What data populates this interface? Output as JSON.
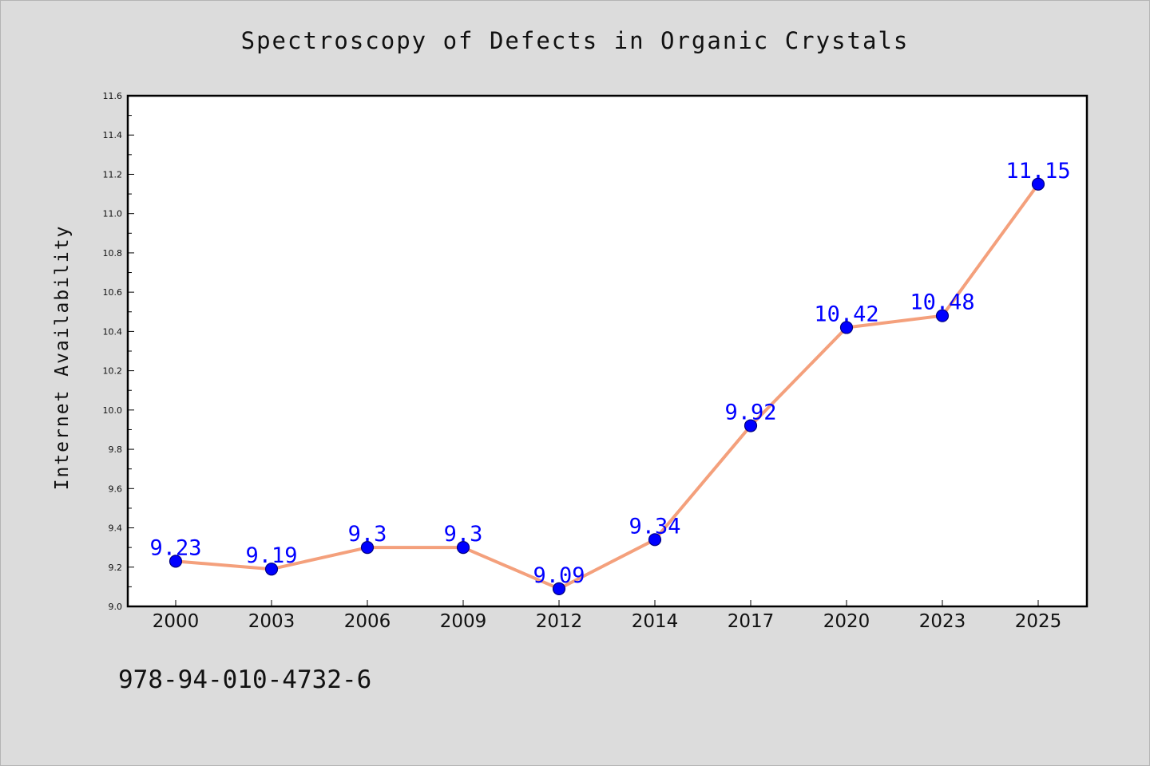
{
  "chart_data": {
    "type": "line",
    "title": "Spectroscopy of Defects in Organic Crystals",
    "xlabel": "",
    "ylabel": "Internet Availability",
    "categories": [
      "2000",
      "2003",
      "2006",
      "2009",
      "2012",
      "2014",
      "2017",
      "2020",
      "2023",
      "2025"
    ],
    "series": [
      {
        "values": [
          9.23,
          9.19,
          9.3,
          9.3,
          9.09,
          9.34,
          9.92,
          10.42,
          10.48,
          11.15
        ],
        "data_labels": [
          "9.23",
          "9.19",
          "9.3",
          "9.3",
          "9.09",
          "9.34",
          "9.92",
          "10.42",
          "10.48",
          "11.15"
        ]
      }
    ],
    "ylim": [
      9.0,
      11.6
    ],
    "yticks": [
      "9.0",
      "9.2",
      "9.4",
      "9.6",
      "9.8",
      "10.0",
      "10.2",
      "10.4",
      "10.6",
      "10.8",
      "11.0",
      "11.2",
      "11.4",
      "11.6"
    ],
    "grid": false,
    "legend": "none",
    "colors": {
      "line": "#f4a07c",
      "marker_fill": "#0000ff",
      "marker_stroke": "#000080",
      "data_label": "#0000ff",
      "plot_bg": "#ffffff",
      "page_bg": "#dcdcdc"
    }
  },
  "footer": {
    "code": "978-94-010-4732-6"
  }
}
